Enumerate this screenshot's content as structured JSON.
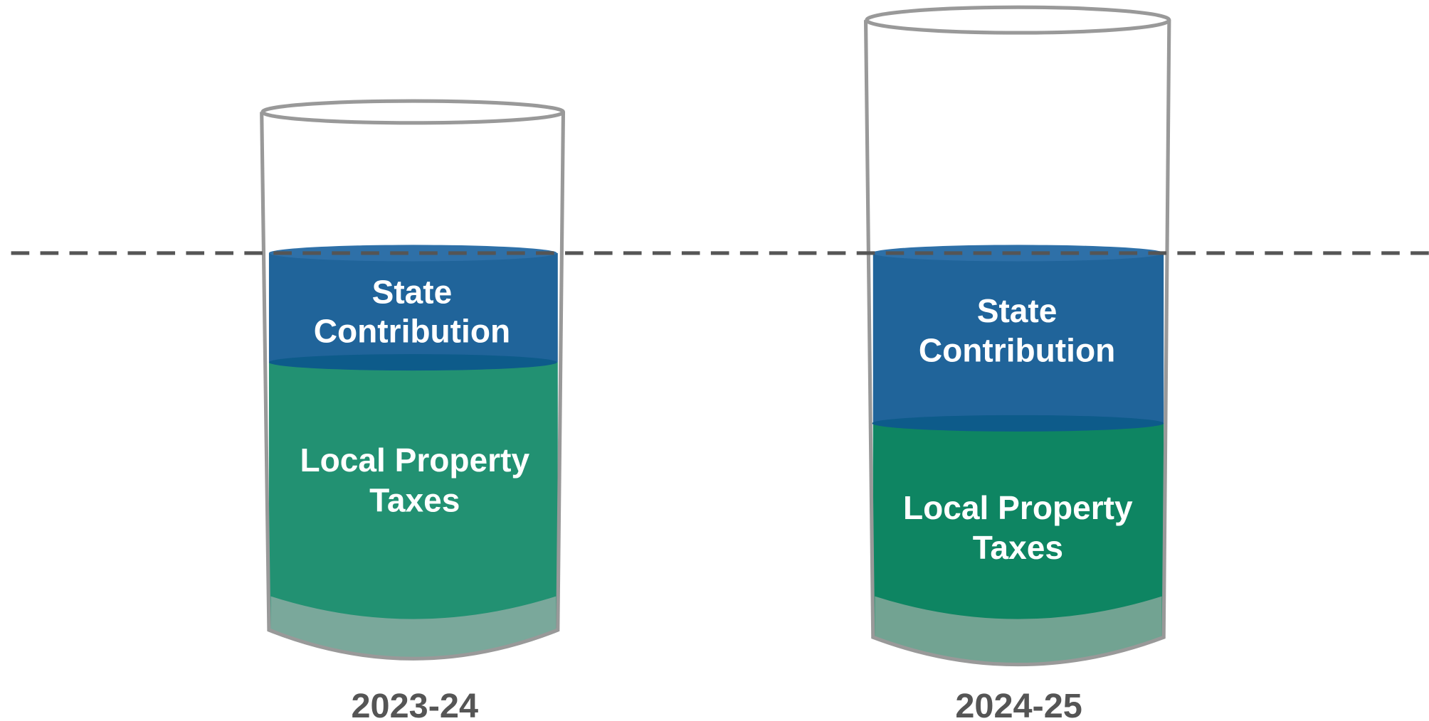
{
  "glasses": [
    {
      "year": "2023-24",
      "state_label": [
        "State",
        "Contribution"
      ],
      "local_label": [
        "Local Property",
        "Taxes"
      ]
    },
    {
      "year": "2024-25",
      "state_label": [
        "State",
        "Contribution"
      ],
      "local_label": [
        "Local Property",
        "Taxes"
      ]
    }
  ]
}
